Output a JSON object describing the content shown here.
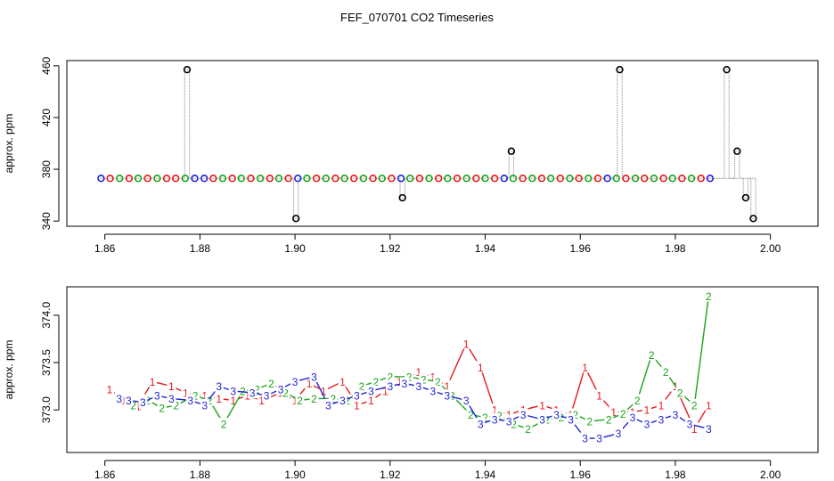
{
  "title": "FEF_070701  CO2 Timeseries",
  "colors": {
    "red": "#e41a1c",
    "green": "#1aa31a",
    "blue": "#1f24d6",
    "black": "#000000",
    "gray": "#9a9a9a"
  },
  "chart_data": [
    {
      "type": "scatter",
      "title": "FEF_070701  CO2 Timeseries",
      "xlabel": "",
      "ylabel": "approx. ppm",
      "xlim": [
        1.852,
        2.01
      ],
      "ylim": [
        336,
        464
      ],
      "xticks": [
        "1.86",
        "1.88",
        "1.90",
        "1.92",
        "1.94",
        "1.96",
        "1.98",
        "2.00"
      ],
      "yticks": [
        "340",
        "380",
        "420",
        "460"
      ],
      "grid": false,
      "legend": "none",
      "baseline": 373,
      "baseline_xrange": [
        1.859,
        1.987
      ],
      "series": [
        {
          "color_key": "red",
          "marker": "circle",
          "x": [
            1.8611,
            1.8651,
            1.869,
            1.873,
            1.8749,
            1.8828,
            1.8868,
            1.8907,
            1.8947,
            1.8986,
            1.9045,
            1.9085,
            1.9124,
            1.9164,
            1.9203,
            1.9262,
            1.9302,
            1.9341,
            1.9381,
            1.942,
            1.9479,
            1.9519,
            1.9558,
            1.9597,
            1.9637,
            1.9696,
            1.9735,
            1.9775,
            1.9814,
            1.9854
          ],
          "y": [
            373,
            373,
            373,
            373,
            373,
            373,
            373,
            373,
            373,
            373,
            373,
            373,
            373,
            373,
            373,
            373,
            373,
            373,
            373,
            373,
            373,
            373,
            373,
            373,
            373,
            373,
            373,
            373,
            373,
            373
          ]
        },
        {
          "color_key": "green",
          "marker": "circle",
          "x": [
            1.8631,
            1.867,
            1.871,
            1.8769,
            1.8848,
            1.8887,
            1.8927,
            1.8966,
            1.9025,
            1.9065,
            1.9104,
            1.9144,
            1.9183,
            1.9242,
            1.9282,
            1.9321,
            1.9361,
            1.94,
            1.9459,
            1.9499,
            1.9538,
            1.9578,
            1.9617,
            1.9676,
            1.9716,
            1.9755,
            1.9794,
            1.9834
          ],
          "y": [
            373,
            373,
            373,
            373,
            373,
            373,
            373,
            373,
            373,
            373,
            373,
            373,
            373,
            373,
            373,
            373,
            373,
            373,
            373,
            373,
            373,
            373,
            373,
            373,
            373,
            373,
            373,
            373
          ]
        },
        {
          "color_key": "blue",
          "marker": "circle",
          "x": [
            1.8592,
            1.8789,
            1.8809,
            1.9006,
            1.9223,
            1.944,
            1.9657,
            1.9873
          ],
          "y": [
            373,
            373,
            373,
            373,
            373,
            373,
            373,
            373
          ]
        },
        {
          "color_key": "black",
          "marker": "circle",
          "x": [
            1.8773,
            1.9002,
            1.9226,
            1.9455,
            1.9683,
            1.9908,
            1.993,
            1.9948,
            1.9964
          ],
          "y": [
            457,
            342,
            358,
            394,
            457,
            457,
            394,
            358,
            342
          ]
        }
      ]
    },
    {
      "type": "line",
      "xlabel": "",
      "ylabel": "approx. ppm",
      "xlim": [
        1.852,
        2.01
      ],
      "ylim": [
        372.55,
        374.3
      ],
      "xticks": [
        "1.86",
        "1.88",
        "1.90",
        "1.92",
        "1.94",
        "1.96",
        "1.98",
        "2.00"
      ],
      "yticks": [
        "373.0",
        "373.5",
        "374.0"
      ],
      "grid": false,
      "legend": "none",
      "series": [
        {
          "name": "1",
          "color_key": "red",
          "x": [
            1.861,
            1.864,
            1.867,
            1.87,
            1.874,
            1.877,
            1.881,
            1.884,
            1.887,
            1.89,
            1.893,
            1.897,
            1.9,
            1.903,
            1.906,
            1.91,
            1.913,
            1.916,
            1.919,
            1.922,
            1.926,
            1.929,
            1.932,
            1.936,
            1.939,
            1.942,
            1.945,
            1.948,
            1.952,
            1.955,
            1.958,
            1.961,
            1.964,
            1.967,
            1.971,
            1.974,
            1.977,
            1.98,
            1.984,
            1.987
          ],
          "y": [
            373.22,
            373.1,
            373.04,
            373.3,
            373.25,
            373.18,
            373.15,
            373.12,
            373.1,
            373.15,
            373.1,
            373.18,
            373.1,
            373.28,
            373.2,
            373.3,
            373.05,
            373.1,
            373.2,
            373.3,
            373.4,
            373.35,
            373.25,
            373.7,
            373.45,
            373.0,
            372.95,
            373.0,
            373.05,
            373.0,
            372.95,
            373.45,
            373.15,
            372.98,
            372.98,
            373.0,
            373.05,
            373.25,
            372.8,
            373.05
          ]
        },
        {
          "name": "2",
          "color_key": "green",
          "x": [
            1.866,
            1.869,
            1.872,
            1.875,
            1.879,
            1.882,
            1.885,
            1.889,
            1.892,
            1.895,
            1.898,
            1.901,
            1.904,
            1.908,
            1.911,
            1.914,
            1.917,
            1.92,
            1.924,
            1.927,
            1.93,
            1.933,
            1.937,
            1.94,
            1.943,
            1.946,
            1.949,
            1.953,
            1.956,
            1.959,
            1.962,
            1.966,
            1.969,
            1.972,
            1.975,
            1.978,
            1.981,
            1.984,
            1.987
          ],
          "y": [
            373.05,
            373.1,
            373.02,
            373.05,
            373.15,
            373.1,
            372.85,
            373.2,
            373.22,
            373.28,
            373.18,
            373.1,
            373.12,
            373.12,
            373.1,
            373.25,
            373.3,
            373.35,
            373.35,
            373.32,
            373.3,
            373.15,
            372.95,
            372.92,
            372.94,
            372.85,
            372.8,
            372.9,
            372.92,
            372.95,
            372.88,
            372.9,
            372.96,
            373.1,
            373.58,
            373.4,
            373.18,
            373.05,
            374.2
          ]
        },
        {
          "name": "3",
          "color_key": "blue",
          "x": [
            1.863,
            1.865,
            1.868,
            1.871,
            1.874,
            1.878,
            1.881,
            1.884,
            1.887,
            1.891,
            1.894,
            1.897,
            1.9,
            1.904,
            1.907,
            1.91,
            1.913,
            1.916,
            1.92,
            1.923,
            1.926,
            1.929,
            1.932,
            1.936,
            1.939,
            1.942,
            1.945,
            1.948,
            1.952,
            1.955,
            1.958,
            1.961,
            1.964,
            1.968,
            1.971,
            1.974,
            1.977,
            1.98,
            1.983,
            1.987
          ],
          "y": [
            373.12,
            373.1,
            373.08,
            373.15,
            373.12,
            373.1,
            373.05,
            373.25,
            373.2,
            373.18,
            373.15,
            373.22,
            373.3,
            373.35,
            373.05,
            373.1,
            373.15,
            373.2,
            373.25,
            373.28,
            373.25,
            373.2,
            373.15,
            373.1,
            372.85,
            372.9,
            372.88,
            372.95,
            372.9,
            372.95,
            372.9,
            372.7,
            372.7,
            372.75,
            372.92,
            372.85,
            372.9,
            372.95,
            372.85,
            372.8
          ]
        }
      ]
    }
  ]
}
